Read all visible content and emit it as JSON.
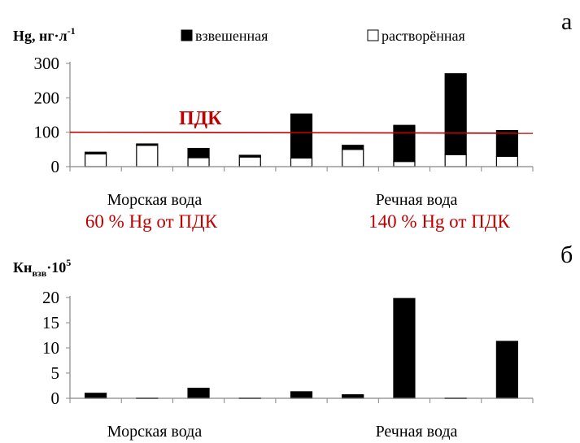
{
  "colors": {
    "filled": "#000000",
    "empty": "#ffffff",
    "threshold": "#c00000",
    "axis": "#868686",
    "text": "#000000"
  },
  "chart_data": [
    {
      "panel_label": "а",
      "type": "bar",
      "stacked": true,
      "ylabel_main": "Hg, нг·л",
      "ylabel_sup": "-1",
      "ylim": [
        0,
        300
      ],
      "yticks": [
        "0",
        "100",
        "200",
        "300"
      ],
      "grid": false,
      "legend_position": "top",
      "legend": [
        "взвешенная",
        "растворённая"
      ],
      "series": [
        {
          "name": "растворённая",
          "fill": "empty",
          "values": [
            37,
            62,
            26,
            28,
            25,
            50,
            15,
            35,
            30
          ]
        },
        {
          "name": "взвешенная",
          "fill": "filled",
          "values": [
            5,
            4,
            27,
            5,
            128,
            12,
            105,
            235,
            75
          ]
        }
      ],
      "threshold": {
        "label": "ПДК",
        "value_start": 100,
        "value_end": 97
      },
      "groups": [
        {
          "label": "Морская вода",
          "note": "60 % Hg от ПДК"
        },
        {
          "label": "Речная вода",
          "note": "140 % Hg от ПДК"
        }
      ]
    },
    {
      "panel_label": "б",
      "type": "bar",
      "ylabel_main": "Кн",
      "ylabel_sub": "взв",
      "ylabel_tail": "·10",
      "ylabel_sup": "5",
      "ylim": [
        0,
        20
      ],
      "yticks": [
        "0",
        "5",
        "10",
        "15",
        "20"
      ],
      "grid": false,
      "series": [
        {
          "name": "Кн",
          "fill": "filled",
          "values": [
            1.0,
            0.05,
            2.0,
            0.05,
            1.3,
            0.7,
            19.8,
            0.05,
            11.3
          ]
        }
      ],
      "groups": [
        {
          "label": "Морская вода"
        },
        {
          "label": "Речная вода"
        }
      ]
    }
  ]
}
